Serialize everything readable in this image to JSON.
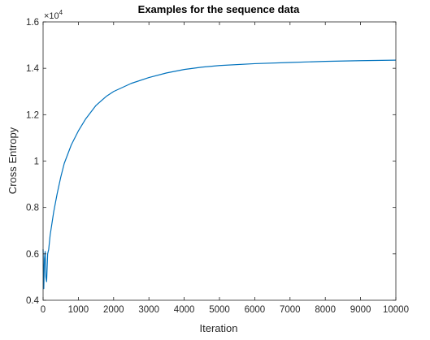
{
  "chart_data": {
    "type": "line",
    "title": "Examples for the sequence data",
    "xlabel": "Iteration",
    "ylabel": "Cross Entropy",
    "xlim": [
      0,
      10000
    ],
    "ylim": [
      0.4,
      1.6
    ],
    "y_exponent_label": "×10",
    "y_exponent_power": "4",
    "x_ticks": [
      "0",
      "1000",
      "2000",
      "3000",
      "4000",
      "5000",
      "6000",
      "7000",
      "8000",
      "9000",
      "10000"
    ],
    "y_ticks": [
      "0.4",
      "0.6",
      "0.8",
      "1",
      "1.2",
      "1.4",
      "1.6"
    ],
    "grid": false,
    "line_color": "#0072BD",
    "series": [
      {
        "x": [
          0,
          20,
          40,
          60,
          80,
          100,
          130,
          160,
          200,
          250,
          300,
          400,
          500,
          600,
          800,
          1000,
          1200,
          1500,
          1800,
          2000,
          2500,
          3000,
          3500,
          4000,
          4500,
          5000,
          6000,
          7000,
          8000,
          9000,
          10000
        ],
        "y": [
          0.62,
          0.45,
          0.58,
          0.61,
          0.5,
          0.48,
          0.6,
          0.62,
          0.68,
          0.73,
          0.78,
          0.86,
          0.93,
          0.99,
          1.07,
          1.13,
          1.18,
          1.24,
          1.28,
          1.3,
          1.335,
          1.36,
          1.38,
          1.395,
          1.405,
          1.412,
          1.42,
          1.425,
          1.43,
          1.433,
          1.435
        ]
      }
    ]
  }
}
